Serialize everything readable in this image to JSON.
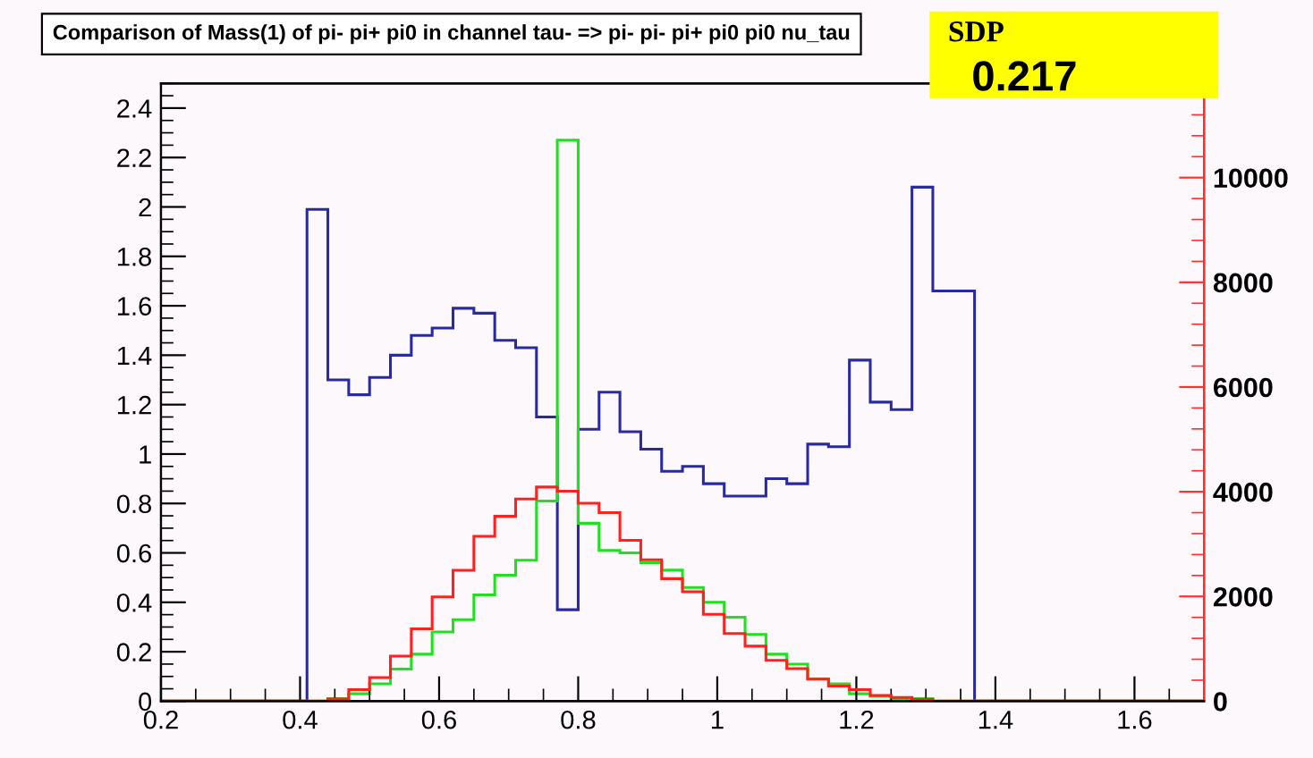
{
  "chart_data": {
    "type": "histogram",
    "title": "Comparison of Mass(1) of pi- pi+ pi0 in channel tau- => pi- pi- pi+ pi0 pi0 nu_tau",
    "annotations": [
      "SDP",
      "0.217"
    ],
    "bins": [
      0.2,
      0.23,
      0.26,
      0.29,
      0.32,
      0.35,
      0.38,
      0.41,
      0.44,
      0.47,
      0.5,
      0.53,
      0.56,
      0.59,
      0.62,
      0.65,
      0.68,
      0.71,
      0.74,
      0.77,
      0.8,
      0.83,
      0.86,
      0.89,
      0.92,
      0.95,
      0.98,
      1.01,
      1.04,
      1.07,
      1.1,
      1.13,
      1.16,
      1.19,
      1.22,
      1.25,
      1.28,
      1.31,
      1.34,
      1.37,
      1.4,
      1.43,
      1.46,
      1.49,
      1.52,
      1.55,
      1.58,
      1.61,
      1.64,
      1.67,
      1.7
    ],
    "series": [
      {
        "color": "#2a2aa0",
        "values": [
          0,
          0,
          0,
          0,
          0,
          0,
          0,
          1.99,
          1.3,
          1.24,
          1.31,
          1.4,
          1.48,
          1.51,
          1.59,
          1.57,
          1.46,
          1.43,
          1.15,
          0.37,
          1.1,
          1.25,
          1.09,
          1.02,
          0.93,
          0.95,
          0.88,
          0.83,
          0.83,
          0.9,
          0.88,
          1.04,
          1.03,
          1.38,
          1.21,
          1.18,
          2.08,
          1.66,
          1.66,
          0,
          0,
          0,
          0,
          0,
          0,
          0,
          0,
          0,
          0,
          0
        ]
      },
      {
        "color": "#ff2020",
        "axis": "y2",
        "values": [
          0,
          0,
          0,
          0,
          0,
          0,
          0,
          0,
          40,
          220,
          450,
          860,
          1380,
          1990,
          2500,
          3150,
          3530,
          3860,
          4090,
          4010,
          3780,
          3600,
          3070,
          2700,
          2340,
          2090,
          1660,
          1290,
          1050,
          780,
          620,
          420,
          290,
          220,
          110,
          70,
          30,
          0,
          0,
          0,
          0,
          0,
          0,
          0,
          0,
          0,
          0,
          0,
          0,
          0
        ]
      },
      {
        "color": "#20e020",
        "values": [
          0,
          0,
          0,
          0,
          0,
          0,
          0,
          0,
          0.01,
          0.03,
          0.07,
          0.13,
          0.19,
          0.28,
          0.33,
          0.43,
          0.51,
          0.57,
          0.81,
          2.27,
          0.72,
          0.61,
          0.6,
          0.56,
          0.53,
          0.46,
          0.4,
          0.34,
          0.27,
          0.19,
          0.15,
          0.09,
          0.07,
          0.03,
          0.02,
          0.01,
          0.01,
          0,
          0,
          0,
          0,
          0,
          0,
          0,
          0,
          0,
          0,
          0,
          0,
          0
        ]
      }
    ],
    "xlim": [
      0.2,
      1.7
    ],
    "xticks": [
      0.2,
      0.4,
      0.6,
      0.8,
      1,
      1.2,
      1.4,
      1.6
    ],
    "ylim": [
      0,
      2.5
    ],
    "yticks": [
      0,
      0.2,
      0.4,
      0.6,
      0.8,
      1,
      1.2,
      1.4,
      1.6,
      1.8,
      2,
      2.2,
      2.4
    ],
    "y2lim": [
      0,
      11800
    ],
    "y2ticks": [
      0,
      2000,
      4000,
      6000,
      8000,
      10000
    ],
    "grid": false,
    "legend": false
  }
}
